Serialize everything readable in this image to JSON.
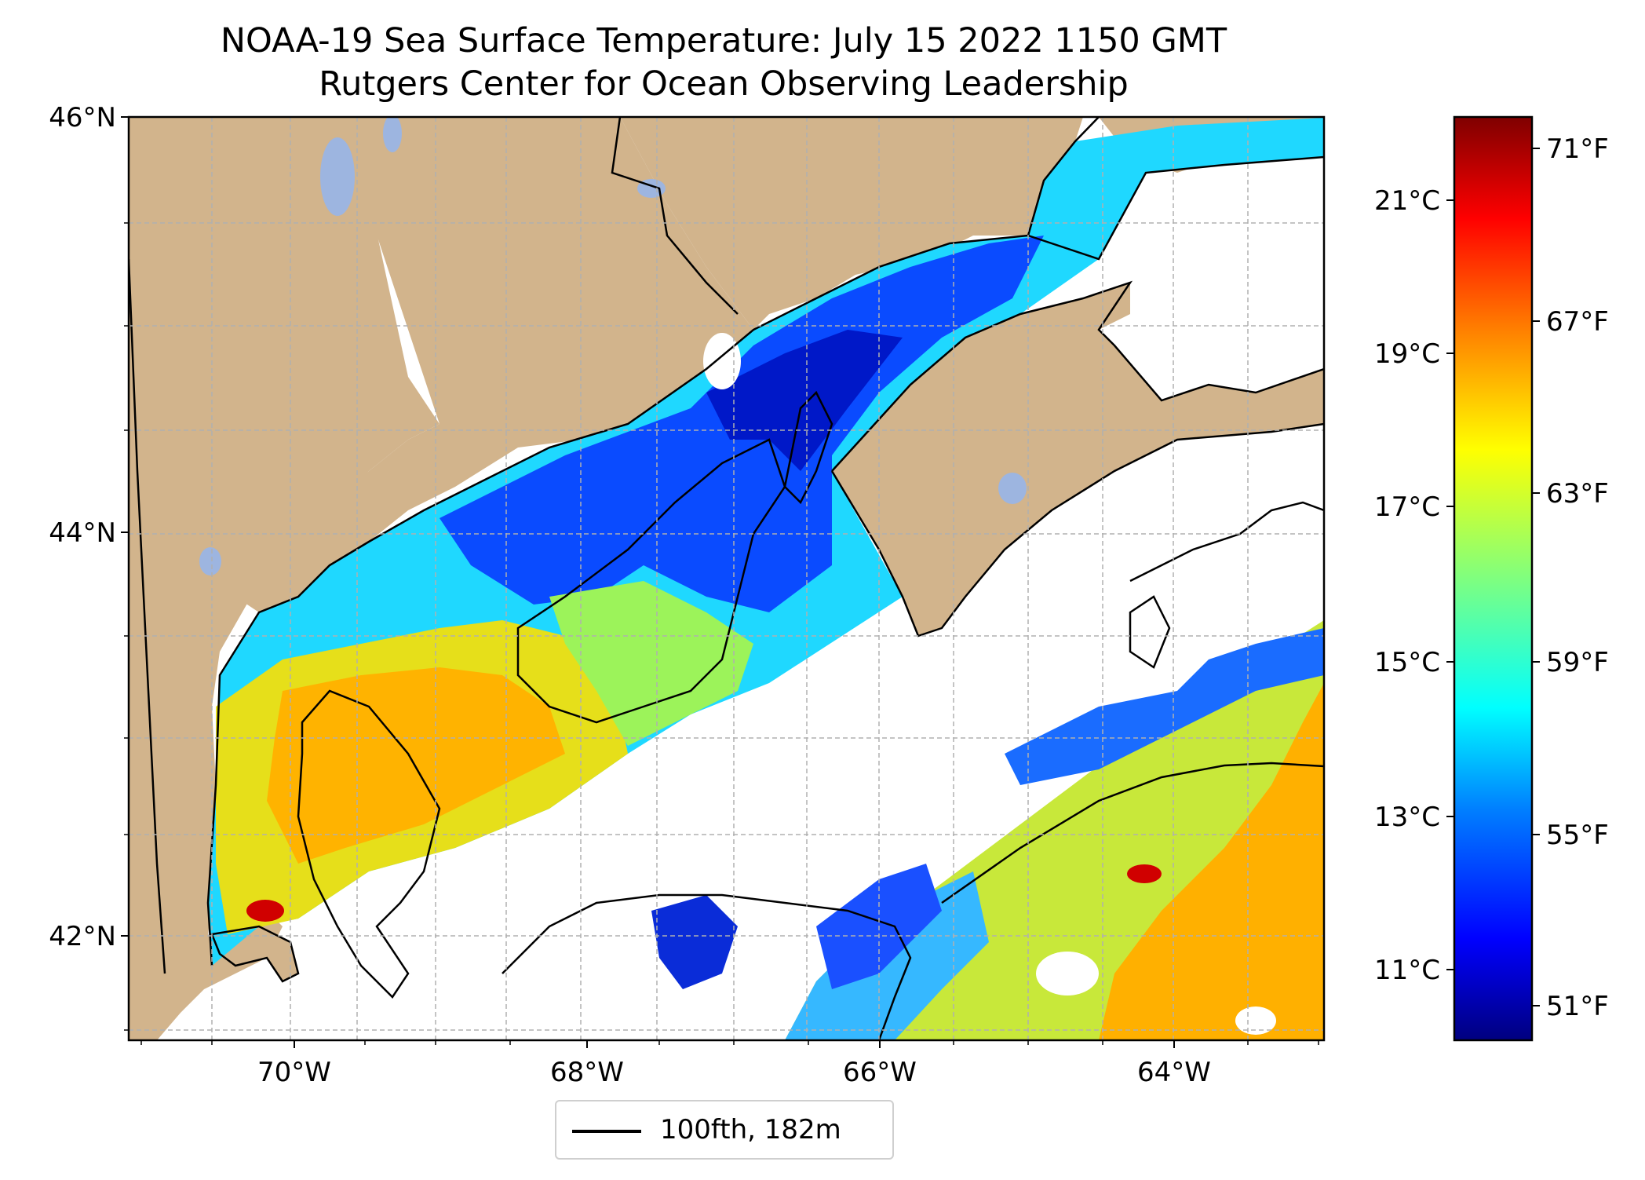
{
  "title": {
    "line1": "NOAA-19 Sea Surface Temperature: July 15 2022 1150 GMT",
    "line2": "Rutgers Center for Ocean Observing Leadership"
  },
  "map": {
    "lat_ticks": [
      "46°N",
      "44°N",
      "42°N"
    ],
    "lon_ticks": [
      "70°W",
      "68°W",
      "66°W",
      "64°W"
    ],
    "gridlines": true,
    "colors": {
      "land": "#d2b48c",
      "lakes": "#9db5e0",
      "no_data": "#ffffff",
      "coastline": "#000000"
    }
  },
  "legend": {
    "label": "100fth, 182m",
    "placement": "bottom-center"
  },
  "colorbar": {
    "celsius_ticks": [
      "21°C",
      "19°C",
      "17°C",
      "15°C",
      "13°C",
      "11°C"
    ],
    "fahrenheit_ticks": [
      "71°F",
      "67°F",
      "63°F",
      "59°F",
      "55°F",
      "51°F"
    ],
    "colormap": "jet",
    "colors": [
      "#00007f",
      "#0000ff",
      "#007fff",
      "#00ffff",
      "#7fff7f",
      "#ffff00",
      "#ff7f00",
      "#ff0000",
      "#7f0000"
    ]
  }
}
